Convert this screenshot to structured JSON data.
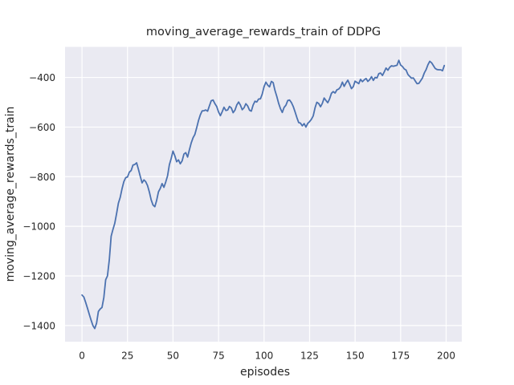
{
  "chart_data": {
    "type": "line",
    "title": "moving_average_rewards_train of DDPG",
    "xlabel": "episodes",
    "ylabel": "moving_average_rewards_train",
    "legend": "none",
    "grid": true,
    "grid_style": "seaborn-darkgrid",
    "xlim": [
      -9.3,
      208.6
    ],
    "ylim": [
      -1465,
      -277
    ],
    "xticks": [
      0,
      25,
      50,
      75,
      100,
      125,
      150,
      175,
      200
    ],
    "xtick_labels": [
      "0",
      "25",
      "50",
      "75",
      "100",
      "125",
      "150",
      "175",
      "200"
    ],
    "yticks": [
      -400,
      -600,
      -800,
      -1000,
      -1200,
      -1400
    ],
    "ytick_labels": [
      "−400",
      "−600",
      "−800",
      "−1000",
      "−1200",
      "−1400"
    ],
    "colors": {
      "line": "#4c72b0",
      "plot_bg": "#eaeaf2",
      "grid": "#ffffff",
      "text": "#262626",
      "figure_bg": "#ffffff"
    },
    "series": [
      {
        "name": "moving_average_rewards_train",
        "x_start": 0,
        "x_step": 1,
        "values": [
          -1277,
          -1285,
          -1306,
          -1330,
          -1355,
          -1378,
          -1400,
          -1412,
          -1391,
          -1343,
          -1333,
          -1327,
          -1287,
          -1215,
          -1200,
          -1135,
          -1040,
          -1013,
          -988,
          -948,
          -907,
          -883,
          -848,
          -820,
          -804,
          -801,
          -782,
          -775,
          -753,
          -751,
          -744,
          -771,
          -798,
          -825,
          -813,
          -820,
          -836,
          -862,
          -893,
          -914,
          -921,
          -896,
          -861,
          -847,
          -828,
          -843,
          -821,
          -797,
          -752,
          -726,
          -697,
          -716,
          -740,
          -732,
          -748,
          -736,
          -709,
          -703,
          -721,
          -692,
          -664,
          -643,
          -630,
          -603,
          -573,
          -551,
          -535,
          -534,
          -531,
          -536,
          -514,
          -494,
          -491,
          -506,
          -517,
          -539,
          -554,
          -538,
          -520,
          -533,
          -531,
          -517,
          -523,
          -542,
          -532,
          -511,
          -499,
          -511,
          -530,
          -522,
          -506,
          -515,
          -532,
          -536,
          -511,
          -496,
          -499,
          -487,
          -486,
          -467,
          -437,
          -419,
          -431,
          -438,
          -416,
          -421,
          -453,
          -477,
          -504,
          -526,
          -541,
          -521,
          -512,
          -493,
          -491,
          -501,
          -517,
          -538,
          -561,
          -582,
          -584,
          -595,
          -586,
          -600,
          -585,
          -578,
          -569,
          -555,
          -522,
          -500,
          -505,
          -518,
          -505,
          -483,
          -493,
          -502,
          -486,
          -464,
          -457,
          -463,
          -450,
          -447,
          -438,
          -419,
          -436,
          -422,
          -411,
          -427,
          -445,
          -437,
          -415,
          -420,
          -425,
          -408,
          -417,
          -410,
          -404,
          -416,
          -409,
          -397,
          -412,
          -400,
          -402,
          -385,
          -382,
          -392,
          -378,
          -362,
          -371,
          -359,
          -353,
          -355,
          -353,
          -351,
          -331,
          -350,
          -356,
          -366,
          -370,
          -388,
          -396,
          -403,
          -402,
          -414,
          -425,
          -424,
          -413,
          -402,
          -382,
          -368,
          -349,
          -335,
          -341,
          -352,
          -364,
          -368,
          -369,
          -369,
          -373,
          -352
        ]
      }
    ]
  }
}
